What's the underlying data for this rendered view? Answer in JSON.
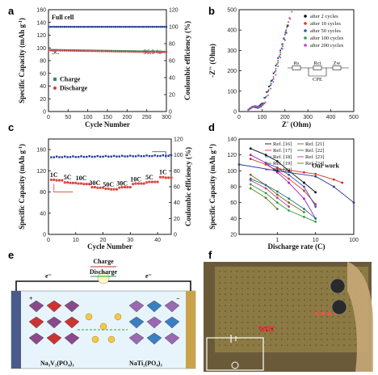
{
  "chart_data": [
    {
      "panel": "a",
      "type": "scatter",
      "xlabel": "Cycle Number",
      "ylabel": "Specific Capacity (mAh g",
      "ylabel2": "Coulombic efficiency (%)",
      "xlim": [
        0,
        300
      ],
      "ylim": [
        0,
        160
      ],
      "y2lim": [
        0,
        120
      ],
      "xticks": [
        0,
        50,
        100,
        150,
        200,
        250,
        300
      ],
      "yticks": [
        0,
        20,
        40,
        60,
        80,
        100,
        120,
        140,
        160
      ],
      "y2ticks": [
        0,
        20,
        40,
        60,
        80,
        100,
        120
      ],
      "annotations": [
        "Full cell",
        "5C",
        "96.9 %"
      ],
      "series": [
        {
          "name": "Charge",
          "color": "#2e8b6e",
          "marker": "square",
          "x_range": [
            1,
            300
          ],
          "values_start": 97,
          "values_end": 94
        },
        {
          "name": "Discharge",
          "color": "#c8453f",
          "marker": "circle",
          "x_range": [
            1,
            300
          ],
          "values_start": 96,
          "values_end": 93
        },
        {
          "name": "",
          "color": "#1f3a93",
          "marker": "square",
          "axis": "y2",
          "x_range": [
            1,
            300
          ],
          "values_start": 99.8,
          "values_end": 99.8
        }
      ]
    },
    {
      "panel": "b",
      "type": "scatter",
      "xlabel": "Z' (Ohm)",
      "ylabel": "-Z'' (Ohm)",
      "xlim": [
        0,
        500
      ],
      "ylim": [
        0,
        500
      ],
      "xticks": [
        0,
        100,
        200,
        300,
        400,
        500
      ],
      "yticks": [
        0,
        100,
        200,
        300,
        400,
        500
      ],
      "series": [
        {
          "name": "after 2 cycles",
          "color": "#111111",
          "points": [
            [
              40,
              10
            ],
            [
              60,
              25
            ],
            [
              80,
              20
            ],
            [
              100,
              40
            ],
            [
              140,
              150
            ],
            [
              180,
              300
            ],
            [
              210,
              420
            ]
          ]
        },
        {
          "name": "after 10 cycles",
          "color": "#e0312d",
          "points": [
            [
              40,
              8
            ],
            [
              60,
              22
            ],
            [
              85,
              18
            ],
            [
              105,
              40
            ],
            [
              150,
              160
            ],
            [
              190,
              320
            ],
            [
              220,
              460
            ]
          ]
        },
        {
          "name": "after 50 cycles",
          "color": "#2d56c9",
          "points": [
            [
              40,
              9
            ],
            [
              62,
              24
            ],
            [
              82,
              17
            ],
            [
              102,
              38
            ],
            [
              145,
              155
            ],
            [
              185,
              310
            ],
            [
              205,
              400
            ]
          ]
        },
        {
          "name": "after 100 cycles",
          "color": "#2f9e44",
          "points": [
            [
              40,
              10
            ],
            [
              65,
              26
            ],
            [
              88,
              20
            ],
            [
              108,
              42
            ],
            [
              150,
              170
            ],
            [
              190,
              330
            ],
            [
              215,
              440
            ]
          ]
        },
        {
          "name": "after 200 cycles",
          "color": "#c13ec9",
          "points": [
            [
              40,
              7
            ],
            [
              70,
              28
            ],
            [
              95,
              22
            ],
            [
              115,
              45
            ],
            [
              160,
              180
            ],
            [
              200,
              350
            ],
            [
              230,
              490
            ]
          ]
        }
      ],
      "inset_labels": [
        "Rs",
        "Rct",
        "Zw",
        "CPE"
      ]
    },
    {
      "panel": "c",
      "type": "scatter",
      "xlabel": "Cycle Number",
      "ylabel": "Specific Capacity (mAh g",
      "ylabel2": "Coulombic efficiency (%)",
      "xlim": [
        0,
        45
      ],
      "ylim": [
        0,
        180
      ],
      "y2lim": [
        0,
        120
      ],
      "xticks": [
        0,
        10,
        20,
        30,
        40
      ],
      "yticks": [
        0,
        40,
        80,
        120,
        160
      ],
      "y2ticks": [
        0,
        20,
        40,
        60,
        80,
        100,
        120
      ],
      "rate_labels": [
        "1C",
        "5C",
        "10C",
        "30C",
        "50C",
        "30C",
        "10C",
        "5C",
        "1C"
      ],
      "series": [
        {
          "name": "Specific capacity",
          "color": "#d9483f",
          "x": [
            1,
            2,
            3,
            4,
            5,
            6,
            7,
            8,
            9,
            10,
            11,
            12,
            13,
            14,
            15,
            16,
            17,
            18,
            19,
            20,
            21,
            22,
            23,
            24,
            25,
            26,
            27,
            28,
            29,
            30,
            31,
            32,
            33,
            34,
            35,
            36,
            37,
            38,
            39,
            40,
            41,
            42,
            43,
            44,
            45
          ],
          "values": [
            103,
            103,
            102,
            102,
            102,
            98,
            98,
            97,
            97,
            97,
            96,
            96,
            95,
            95,
            95,
            89,
            89,
            88,
            88,
            88,
            86,
            86,
            85,
            85,
            85,
            88,
            89,
            89,
            89,
            89,
            95,
            96,
            96,
            96,
            96,
            98,
            99,
            99,
            99,
            99,
            108,
            108,
            107,
            107,
            107
          ]
        },
        {
          "name": "Coulombic efficiency",
          "color": "#1f3a93",
          "axis": "y2",
          "x": [
            1,
            45
          ],
          "values": [
            97,
            100
          ]
        }
      ]
    },
    {
      "panel": "d",
      "type": "line",
      "xlabel": "Discharge rate (C)",
      "ylabel": "Specific Capacity (mAh g",
      "xscale": "log",
      "xlim": [
        0.1,
        100
      ],
      "ylim": [
        20,
        140
      ],
      "xticks": [
        1,
        10,
        100
      ],
      "yticks": [
        20,
        40,
        60,
        80,
        100,
        120,
        140
      ],
      "annotation": "Our work",
      "series": [
        {
          "name": "Ref. [16]",
          "color": "#111111",
          "points": [
            [
              0.2,
              128
            ],
            [
              0.5,
              120
            ],
            [
              1,
              112
            ],
            [
              2,
              100
            ],
            [
              5,
              85
            ],
            [
              10,
              73
            ]
          ]
        },
        {
          "name": "Ref. [17]",
          "color": "#e0312d",
          "points": [
            [
              0.2,
              115
            ],
            [
              0.5,
              108
            ],
            [
              1,
              100
            ],
            [
              2,
              90
            ],
            [
              5,
              75
            ],
            [
              10,
              58
            ]
          ]
        },
        {
          "name": "Ref. [18]",
          "color": "#2d56c9",
          "points": [
            [
              0.5,
              110
            ],
            [
              1,
              104
            ],
            [
              2,
              95
            ],
            [
              5,
              80
            ],
            [
              10,
              55
            ]
          ]
        },
        {
          "name": "Ref. [19]",
          "color": "#2f9e44",
          "points": [
            [
              0.2,
              83
            ],
            [
              0.5,
              72
            ],
            [
              1,
              60
            ],
            [
              2,
              50
            ],
            [
              5,
              42
            ],
            [
              10,
              36
            ]
          ]
        },
        {
          "name": "Ref. [20]",
          "color": "#a020c0",
          "points": [
            [
              0.2,
              120
            ],
            [
              0.5,
              110
            ],
            [
              1,
              98
            ],
            [
              2,
              85
            ],
            [
              5,
              65
            ],
            [
              10,
              40
            ]
          ]
        },
        {
          "name": "Ref. [21]",
          "color": "#7a6a1a",
          "points": [
            [
              0.2,
              95
            ],
            [
              0.5,
              82
            ],
            [
              1,
              70
            ],
            [
              2,
              60
            ],
            [
              5,
              48
            ]
          ]
        },
        {
          "name": "Ref. [22]",
          "color": "#1e7a7a",
          "points": [
            [
              0.2,
              90
            ],
            [
              0.5,
              82
            ],
            [
              1,
              74
            ],
            [
              2,
              65
            ],
            [
              5,
              52
            ],
            [
              10,
              40
            ]
          ]
        },
        {
          "name": "Ref. [23]",
          "color": "#c03a8a",
          "points": [
            [
              0.2,
              88
            ],
            [
              0.5,
              78
            ],
            [
              1,
              66
            ],
            [
              2,
              55
            ]
          ]
        },
        {
          "name": "Ref. [24]",
          "color": "#5a7a20",
          "points": [
            [
              0.2,
              78
            ],
            [
              0.5,
              66
            ],
            [
              1,
              52
            ]
          ]
        },
        {
          "name": "Our work",
          "color": "#d0302a",
          "points": [
            [
              1,
              103
            ],
            [
              5,
              98
            ],
            [
              10,
              96
            ],
            [
              30,
              89
            ],
            [
              50,
              85
            ]
          ]
        },
        {
          "name": "",
          "color": "#1f3a93",
          "points": [
            [
              0.1,
              108
            ],
            [
              1,
              100
            ],
            [
              10,
              93
            ],
            [
              30,
              80
            ],
            [
              100,
              60
            ]
          ]
        }
      ]
    }
  ],
  "panels": {
    "a": "a",
    "b": "b",
    "c": "c",
    "d": "d",
    "e": "e",
    "f": "f"
  },
  "panel_e": {
    "electron_left": "e⁻",
    "electron_right": "e⁻",
    "charge_label": "Charge",
    "discharge_label": "Discharge",
    "left_material": "Na₃V₂(PO₄)₃",
    "right_material": "NaTi₂(PO₄)₃",
    "plus": "+",
    "minus": "−",
    "na_label": "Na"
  },
  "panel_f": {
    "led_text": "WUT"
  },
  "colors": {
    "charge": "#2e8b6e",
    "discharge": "#c8453f",
    "ce": "#1f3a93"
  }
}
